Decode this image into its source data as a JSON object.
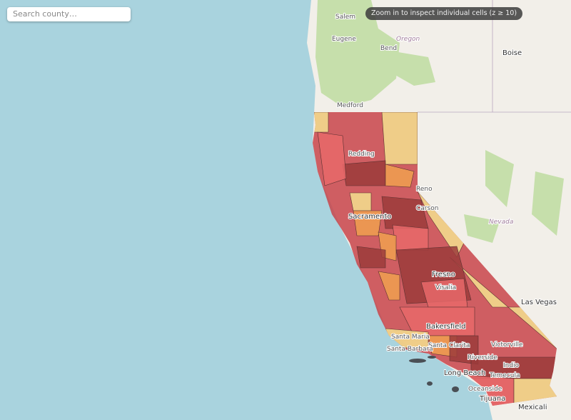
{
  "search": {
    "placeholder": "Search county…"
  },
  "notice": "Zoom in to inspect individual cells (z ≥ 10)",
  "labels": [
    "Salem",
    "Eugene",
    "Oregon",
    "Bend",
    "Boise",
    "Medford",
    "Redding",
    "Reno",
    "Carson",
    "Sacramento",
    "Nevada",
    "Fresno",
    "Visalia",
    "Bakersfield",
    "Las Vegas",
    "Santa Maria",
    "Santa Clarita",
    "Victorville",
    "Santa Barbara",
    "Riverside",
    "Indio",
    "Long Beach",
    "Temecula",
    "Oceanside",
    "Tijuana",
    "Mexicali"
  ]
}
